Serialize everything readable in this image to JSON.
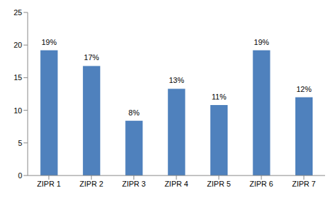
{
  "chart_data": {
    "type": "bar",
    "categories": [
      "ZIPR 1",
      "ZIPR 2",
      "ZIPR 3",
      "ZIPR 4",
      "ZIPR 5",
      "ZIPR 6",
      "ZIPR 7"
    ],
    "values": [
      19.2,
      16.8,
      8.4,
      13.3,
      10.8,
      19.2,
      12.0
    ],
    "value_labels": [
      "19%",
      "17%",
      "8%",
      "13%",
      "11%",
      "19%",
      "12%"
    ],
    "data_labels": true,
    "color": "#4f81bd",
    "ylim": [
      0,
      25
    ],
    "yticks": [
      0,
      5,
      10,
      15,
      20,
      25
    ],
    "grid": false
  }
}
